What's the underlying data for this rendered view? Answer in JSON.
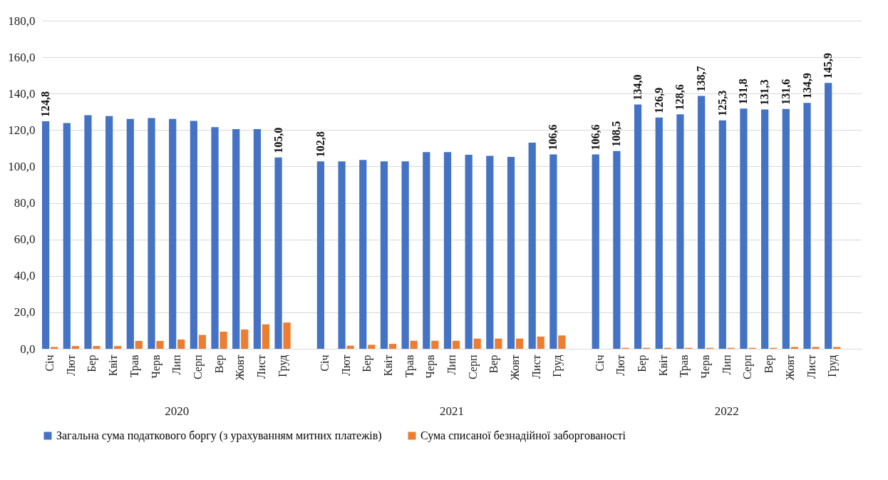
{
  "chart_data": {
    "type": "bar",
    "categories": [
      "Січ",
      "Лют",
      "Бер",
      "Квіт",
      "Трав",
      "Черв",
      "Лип",
      "Серп",
      "Вер",
      "Жовт",
      "Лист",
      "Груд",
      null,
      "Січ",
      "Лют",
      "Бер",
      "Квіт",
      "Трав",
      "Черв",
      "Лип",
      "Серп",
      "Вер",
      "Жовт",
      "Лист",
      "Груд",
      null,
      "Січ",
      "Лют",
      "Бер",
      "Квіт",
      "Трав",
      "Черв",
      "Лип",
      "Серп",
      "Вер",
      "Жовт",
      "Лист",
      "Груд",
      null
    ],
    "series": [
      {
        "name": "Загальна сума податкового боргу (з урахуванням  митних платежів)",
        "color": "#4472c4",
        "values": [
          124.8,
          123.8,
          128.2,
          127.7,
          126.1,
          126.6,
          126.1,
          125.0,
          121.6,
          120.5,
          120.5,
          105.0,
          null,
          102.8,
          102.8,
          103.6,
          102.8,
          102.8,
          107.9,
          107.9,
          106.4,
          105.8,
          105.3,
          113.1,
          106.6,
          null,
          106.6,
          108.5,
          134.0,
          126.9,
          128.6,
          138.7,
          125.3,
          131.8,
          131.3,
          131.6,
          134.9,
          145.9,
          null
        ],
        "value_labels": [
          "124,8",
          null,
          null,
          null,
          null,
          null,
          null,
          null,
          null,
          null,
          null,
          "105,0",
          null,
          "102,8",
          null,
          null,
          null,
          null,
          null,
          null,
          null,
          null,
          null,
          null,
          "106,6",
          null,
          "106,6",
          "108,5",
          "134,0",
          "126,9",
          "128,6",
          "138,7",
          "125,3",
          "131,8",
          "131,3",
          "131,6",
          "134,9",
          "145,9",
          null
        ]
      },
      {
        "name": "Сума списаної безнадійної заборгованості",
        "color": "#ed7d31",
        "values": [
          1.0,
          1.5,
          1.5,
          1.5,
          4.3,
          4.3,
          5.1,
          7.6,
          9.4,
          10.6,
          13.4,
          14.4,
          null,
          0,
          1.7,
          2.2,
          2.7,
          4.4,
          4.4,
          4.4,
          5.6,
          5.6,
          5.6,
          6.7,
          7.3,
          null,
          0,
          0.5,
          0.5,
          0.5,
          0.5,
          0.5,
          0.5,
          0.5,
          0.5,
          1.0,
          1.0,
          1.0,
          null
        ]
      }
    ],
    "annotations": [
      "2020",
      "2021",
      "2022"
    ],
    "ylim": [
      0,
      180
    ],
    "yticks": [
      {
        "value": 0,
        "label": "0,0"
      },
      {
        "value": 20,
        "label": "20,0"
      },
      {
        "value": 40,
        "label": "40,0"
      },
      {
        "value": 60,
        "label": "60,0"
      },
      {
        "value": 80,
        "label": "80,0"
      },
      {
        "value": 100,
        "label": "100,0"
      },
      {
        "value": 120,
        "label": "120,0"
      },
      {
        "value": 140,
        "label": "140,0"
      },
      {
        "value": 160,
        "label": "160,0"
      },
      {
        "value": 180,
        "label": "180,0"
      }
    ],
    "grid": "y",
    "legend": "bottom"
  }
}
